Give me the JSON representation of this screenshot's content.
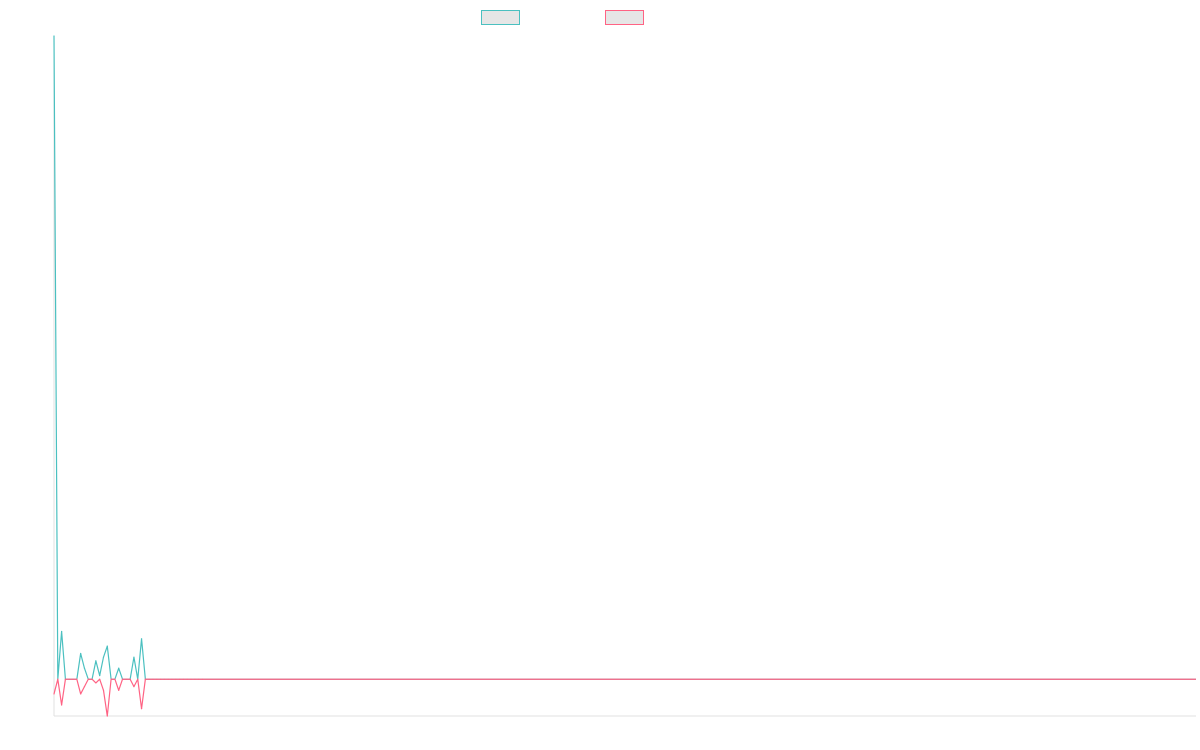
{
  "chart_data": {
    "type": "line",
    "title": "",
    "xlabel": "",
    "ylabel": "",
    "legend_position": "top-center",
    "grid": false,
    "y_domain": [
      -10,
      175
    ],
    "x_domain": [
      0,
      300
    ],
    "series": [
      {
        "name": "",
        "color": "#4bc0c0",
        "fill": "#e6e6e6",
        "values": [
          175,
          0,
          13,
          0,
          0,
          0,
          0,
          7,
          3,
          0,
          0,
          5,
          1,
          6,
          9,
          0,
          0,
          3,
          0,
          0,
          0,
          6,
          0,
          11,
          0,
          0,
          0,
          0,
          0,
          0,
          0,
          0,
          0,
          0,
          0,
          0,
          0,
          0,
          0,
          0
        ]
      },
      {
        "name": "",
        "color": "#ff6384",
        "fill": "#e6e6e6",
        "values": [
          -4,
          0,
          -7,
          0,
          0,
          0,
          0,
          -4,
          -2,
          0,
          0,
          -1,
          0,
          -3,
          -10,
          0,
          0,
          -3,
          0,
          0,
          0,
          -2,
          0,
          -8,
          0,
          0,
          0,
          0,
          0,
          0,
          0,
          0,
          0,
          0,
          0,
          0,
          0,
          0,
          0,
          0
        ]
      }
    ]
  }
}
